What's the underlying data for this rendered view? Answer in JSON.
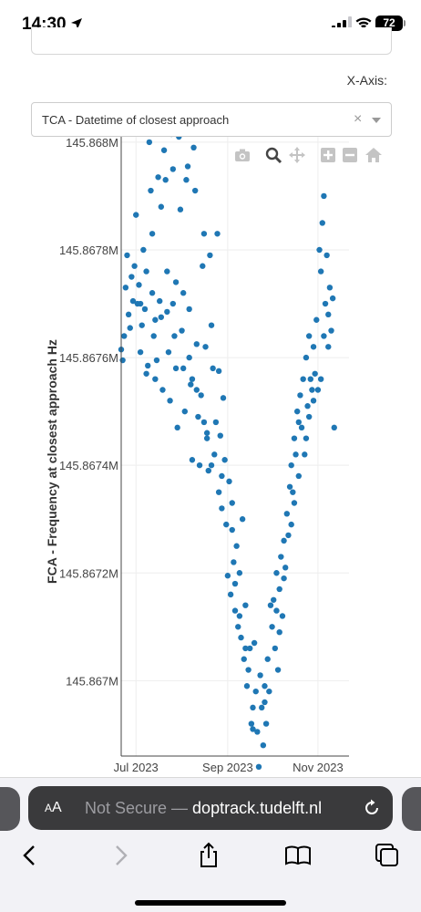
{
  "status": {
    "time": "14:30",
    "battery": "72"
  },
  "controls": {
    "xaxis_label": "X-Axis:",
    "xaxis_value": "TCA - Datetime of closest approach",
    "clear_glyph": "×"
  },
  "modebar": {
    "icons": [
      "camera-icon",
      "zoom-icon",
      "pan-icon",
      "zoom-in-icon",
      "zoom-out-icon",
      "home-icon"
    ]
  },
  "chart_data": {
    "type": "scatter",
    "title": "",
    "xlabel": "",
    "ylabel": "FCA - Frequency at closest approach Hz",
    "x_ticks": [
      "Jul 2023",
      "Sep 2023",
      "Nov 2023"
    ],
    "x_tick_dates": [
      "2023-07-01",
      "2023-09-01",
      "2023-11-01"
    ],
    "y_ticks": [
      "145.867M",
      "145.8672M",
      "145.8674M",
      "145.8676M",
      "145.8678M",
      "145.868M"
    ],
    "y_tick_values": [
      145867000,
      145867200,
      145867400,
      145867600,
      145867800,
      145868000
    ],
    "xlim": [
      "2023-06-21",
      "2023-11-22"
    ],
    "ylim": [
      145866860,
      145868010
    ],
    "grid": true,
    "marker_color": "#1f77b4",
    "points": [
      [
        "2023-06-21",
        145867615
      ],
      [
        "2023-06-22",
        145867595
      ],
      [
        "2023-06-23",
        145867640
      ],
      [
        "2023-06-24",
        145867730
      ],
      [
        "2023-06-25",
        145867790
      ],
      [
        "2023-06-26",
        145867680
      ],
      [
        "2023-06-27",
        145867655
      ],
      [
        "2023-06-28",
        145867750
      ],
      [
        "2023-06-29",
        145867705
      ],
      [
        "2023-06-30",
        145867770
      ],
      [
        "2023-07-01",
        145867865
      ],
      [
        "2023-07-02",
        145867700
      ],
      [
        "2023-07-03",
        145867735
      ],
      [
        "2023-07-04",
        145867610
      ],
      [
        "2023-07-05",
        145867660
      ],
      [
        "2023-07-06",
        145867800
      ],
      [
        "2023-07-07",
        145867690
      ],
      [
        "2023-07-08",
        145867570
      ],
      [
        "2023-07-09",
        145867585
      ],
      [
        "2023-07-10",
        145868000
      ],
      [
        "2023-07-11",
        145867910
      ],
      [
        "2023-07-12",
        145867720
      ],
      [
        "2023-07-13",
        145867640
      ],
      [
        "2023-07-14",
        145867560
      ],
      [
        "2023-07-15",
        145867595
      ],
      [
        "2023-07-16",
        145867935
      ],
      [
        "2023-07-17",
        145867705
      ],
      [
        "2023-07-18",
        145867675
      ],
      [
        "2023-07-19",
        145867540
      ],
      [
        "2023-07-20",
        145867985
      ],
      [
        "2023-07-21",
        145867930
      ],
      [
        "2023-07-22",
        145867685
      ],
      [
        "2023-07-23",
        145867610
      ],
      [
        "2023-07-24",
        145867520
      ],
      [
        "2023-07-25",
        145868015
      ],
      [
        "2023-07-26",
        145867950
      ],
      [
        "2023-07-27",
        145867640
      ],
      [
        "2023-07-28",
        145867580
      ],
      [
        "2023-07-29",
        145867470
      ],
      [
        "2023-07-30",
        145868010
      ],
      [
        "2023-07-31",
        145867875
      ],
      [
        "2023-08-01",
        145867650
      ],
      [
        "2023-08-02",
        145867580
      ],
      [
        "2023-08-03",
        145867500
      ],
      [
        "2023-08-04",
        145867930
      ],
      [
        "2023-08-05",
        145867955
      ],
      [
        "2023-08-06",
        145867690
      ],
      [
        "2023-08-07",
        145867550
      ],
      [
        "2023-08-08",
        145867410
      ],
      [
        "2023-08-09",
        145867990
      ],
      [
        "2023-08-10",
        145867910
      ],
      [
        "2023-08-11",
        145867625
      ],
      [
        "2023-08-12",
        145867490
      ],
      [
        "2023-08-13",
        145867400
      ],
      [
        "2023-08-14",
        145867530
      ],
      [
        "2023-08-15",
        145867770
      ],
      [
        "2023-08-16",
        145867830
      ],
      [
        "2023-08-17",
        145867620
      ],
      [
        "2023-08-18",
        145867460
      ],
      [
        "2023-08-19",
        145867390
      ],
      [
        "2023-08-20",
        145867790
      ],
      [
        "2023-08-21",
        145867660
      ],
      [
        "2023-08-22",
        145867580
      ],
      [
        "2023-08-23",
        145867420
      ],
      [
        "2023-08-24",
        145867480
      ],
      [
        "2023-08-25",
        145867830
      ],
      [
        "2023-08-26",
        145867575
      ],
      [
        "2023-08-27",
        145867455
      ],
      [
        "2023-08-28",
        145867320
      ],
      [
        "2023-08-29",
        145867525
      ],
      [
        "2023-08-30",
        145867410
      ],
      [
        "2023-08-31",
        145867290
      ],
      [
        "2023-09-01",
        145867195
      ],
      [
        "2023-09-02",
        145867370
      ],
      [
        "2023-09-03",
        145867160
      ],
      [
        "2023-09-04",
        145867330
      ],
      [
        "2023-09-05",
        145867220
      ],
      [
        "2023-09-06",
        145867130
      ],
      [
        "2023-09-07",
        145867250
      ],
      [
        "2023-09-08",
        145867100
      ],
      [
        "2023-09-09",
        145867200
      ],
      [
        "2023-09-10",
        145867080
      ],
      [
        "2023-09-11",
        145867300
      ],
      [
        "2023-09-12",
        145867040
      ],
      [
        "2023-09-13",
        145867140
      ],
      [
        "2023-09-14",
        145866990
      ],
      [
        "2023-09-15",
        145867020
      ],
      [
        "2023-09-16",
        145867060
      ],
      [
        "2023-09-17",
        145866920
      ],
      [
        "2023-09-18",
        145866950
      ],
      [
        "2023-09-19",
        145867070
      ],
      [
        "2023-09-20",
        145866980
      ],
      [
        "2023-09-21",
        145866905
      ],
      [
        "2023-09-22",
        145866840
      ],
      [
        "2023-09-23",
        145867010
      ],
      [
        "2023-09-24",
        145866950
      ],
      [
        "2023-09-25",
        145866880
      ],
      [
        "2023-09-26",
        145866990
      ],
      [
        "2023-09-27",
        145866920
      ],
      [
        "2023-09-28",
        145867040
      ],
      [
        "2023-09-29",
        145866980
      ],
      [
        "2023-09-30",
        145867140
      ],
      [
        "2023-10-01",
        145867100
      ],
      [
        "2023-10-02",
        145867150
      ],
      [
        "2023-10-03",
        145867060
      ],
      [
        "2023-10-04",
        145867200
      ],
      [
        "2023-10-05",
        145867020
      ],
      [
        "2023-10-06",
        145867170
      ],
      [
        "2023-10-07",
        145867230
      ],
      [
        "2023-10-08",
        145867120
      ],
      [
        "2023-10-09",
        145867260
      ],
      [
        "2023-10-10",
        145867210
      ],
      [
        "2023-10-11",
        145867310
      ],
      [
        "2023-10-12",
        145867270
      ],
      [
        "2023-10-13",
        145867360
      ],
      [
        "2023-10-14",
        145867400
      ],
      [
        "2023-10-15",
        145867350
      ],
      [
        "2023-10-16",
        145867450
      ],
      [
        "2023-10-17",
        145867420
      ],
      [
        "2023-10-18",
        145867500
      ],
      [
        "2023-10-19",
        145867480
      ],
      [
        "2023-10-20",
        145867530
      ],
      [
        "2023-10-21",
        145867470
      ],
      [
        "2023-10-22",
        145867560
      ],
      [
        "2023-10-23",
        145867420
      ],
      [
        "2023-10-24",
        145867600
      ],
      [
        "2023-10-25",
        145867510
      ],
      [
        "2023-10-26",
        145867640
      ],
      [
        "2023-10-27",
        145867560
      ],
      [
        "2023-10-28",
        145867540
      ],
      [
        "2023-10-29",
        145867520
      ],
      [
        "2023-10-30",
        145867570
      ],
      [
        "2023-10-31",
        145867670
      ],
      [
        "2023-11-01",
        145867540
      ],
      [
        "2023-11-02",
        145867800
      ],
      [
        "2023-11-03",
        145867760
      ],
      [
        "2023-11-04",
        145867850
      ],
      [
        "2023-11-05",
        145867900
      ],
      [
        "2023-11-06",
        145867700
      ],
      [
        "2023-11-07",
        145867790
      ],
      [
        "2023-11-08",
        145867680
      ],
      [
        "2023-11-09",
        145867730
      ],
      [
        "2023-11-10",
        145867650
      ],
      [
        "2023-11-11",
        145867710
      ],
      [
        "2023-11-12",
        145867470
      ],
      [
        "2023-07-08",
        145867760
      ],
      [
        "2023-07-12",
        145867830
      ],
      [
        "2023-07-18",
        145867880
      ],
      [
        "2023-07-22",
        145867760
      ],
      [
        "2023-07-26",
        145867700
      ],
      [
        "2023-08-02",
        145867720
      ],
      [
        "2023-08-06",
        145867600
      ],
      [
        "2023-08-11",
        145867540
      ],
      [
        "2023-08-16",
        145867480
      ],
      [
        "2023-08-21",
        145867400
      ],
      [
        "2023-08-26",
        145867350
      ],
      [
        "2023-09-04",
        145867280
      ],
      [
        "2023-09-09",
        145867120
      ],
      [
        "2023-09-13",
        145867060
      ],
      [
        "2023-09-18",
        145866910
      ],
      [
        "2023-10-04",
        145867130
      ],
      [
        "2023-10-09",
        145867190
      ],
      [
        "2023-10-14",
        145867290
      ],
      [
        "2023-10-19",
        145867380
      ],
      [
        "2023-10-24",
        145867450
      ],
      [
        "2023-10-29",
        145867620
      ],
      [
        "2023-11-03",
        145867560
      ],
      [
        "2023-11-08",
        145867620
      ],
      [
        "2023-07-04",
        145867700
      ],
      [
        "2023-07-14",
        145867670
      ],
      [
        "2023-07-28",
        145867740
      ],
      [
        "2023-08-08",
        145867560
      ],
      [
        "2023-08-18",
        145867450
      ],
      [
        "2023-08-28",
        145867380
      ],
      [
        "2023-09-06",
        145867180
      ],
      [
        "2023-09-26",
        145866960
      ],
      [
        "2023-10-06",
        145867090
      ],
      [
        "2023-10-16",
        145867330
      ],
      [
        "2023-10-26",
        145867490
      ],
      [
        "2023-11-05",
        145867640
      ]
    ]
  }
}
